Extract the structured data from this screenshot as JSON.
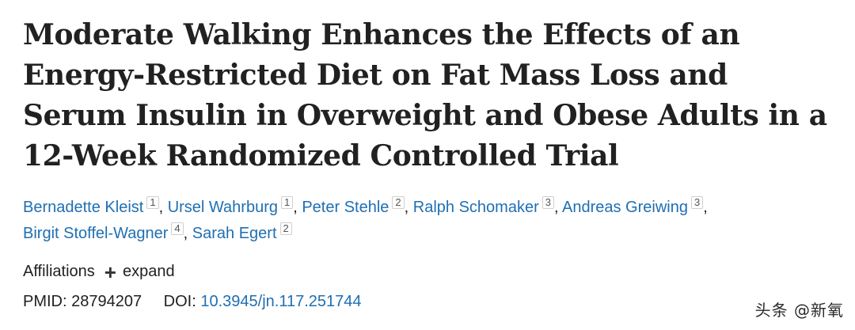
{
  "article": {
    "title": "Moderate Walking Enhances the Effects of an Energy-Restricted Diet on Fat Mass Loss and Serum Insulin in Overweight and Obese Adults in a 12-Week Randomized Controlled Trial",
    "authors": [
      {
        "name": "Bernadette Kleist",
        "aff": "1",
        "sep": ", "
      },
      {
        "name": "Ursel Wahrburg",
        "aff": "1",
        "sep": ", "
      },
      {
        "name": "Peter Stehle",
        "aff": "2",
        "sep": ", "
      },
      {
        "name": "Ralph Schomaker",
        "aff": "3",
        "sep": ", "
      },
      {
        "name": "Andreas Greiwing",
        "aff": "3",
        "sep": ","
      },
      {
        "name": "Birgit Stoffel-Wagner",
        "aff": "4",
        "sep": ", "
      },
      {
        "name": "Sarah Egert",
        "aff": "2",
        "sep": ""
      }
    ],
    "affiliations_label": "Affiliations",
    "expand_label": "expand",
    "pmid_label": "PMID:",
    "pmid": "28794207",
    "doi_label": "DOI:",
    "doi": "10.3945/jn.117.251744"
  },
  "watermark": "头条 @新氧",
  "colors": {
    "link": "#1f6fb2",
    "text": "#212121"
  }
}
